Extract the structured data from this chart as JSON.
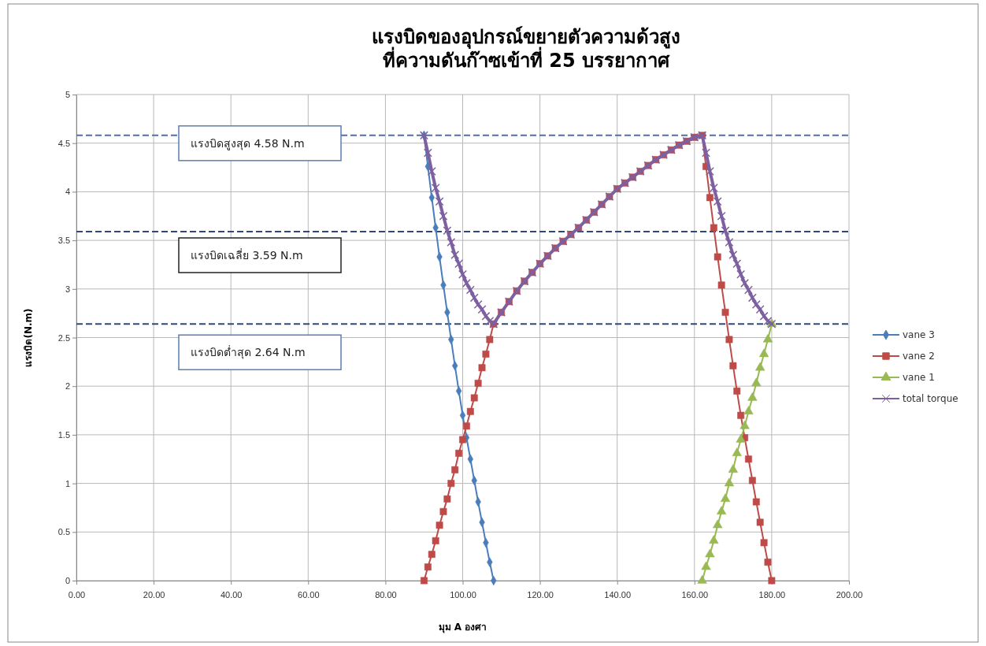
{
  "chart_data": {
    "type": "line",
    "title": "แรงบิดของอุปกรณ์ขยายตัวความด้วสูง\nที่ความดันก๊าซเข้าที่ 25 บรรยากาศ",
    "xlabel": "มุม A องศา",
    "ylabel": "แรงบิด(N.m)",
    "xlim": [
      0,
      200
    ],
    "xticks": [
      {
        "value": 0,
        "label": "0.00"
      },
      {
        "value": 20,
        "label": "20.00"
      },
      {
        "value": 40,
        "label": "40.00"
      },
      {
        "value": 60,
        "label": "60.00"
      },
      {
        "value": 80,
        "label": "80.00"
      },
      {
        "value": 100,
        "label": "100.00"
      },
      {
        "value": 120,
        "label": "120.00"
      },
      {
        "value": 140,
        "label": "140.00"
      },
      {
        "value": 160,
        "label": "160.00"
      },
      {
        "value": 180,
        "label": "180.00"
      },
      {
        "value": 200,
        "label": "200.00"
      }
    ],
    "ylim": [
      0,
      5
    ],
    "yticks": [
      0,
      0.5,
      1,
      1.5,
      2,
      2.5,
      3,
      3.5,
      4,
      4.5,
      5
    ],
    "grid": true,
    "legend": "right",
    "line_style": "solid",
    "ref_lines": [
      {
        "axis": "y",
        "value": 4.58,
        "label": "แรงบิดสูงสุด 4.58 N.m",
        "color": "#4f6fa8",
        "line_style": "dashed"
      },
      {
        "axis": "y",
        "value": 3.59,
        "label": "แรงบิดเฉลี่ย 3.59 N.m",
        "color": "#2f4a7a",
        "line_style": "dashed"
      },
      {
        "axis": "y",
        "value": 2.64,
        "label": "แรงบิดต่ำสุด 2.64 N.m",
        "color": "#2f4a7a",
        "line_style": "dashed"
      }
    ],
    "series": [
      {
        "name": "vane 3",
        "color": "#4a7ebb",
        "marker": "diamond",
        "x": [
          90,
          91,
          92,
          93,
          94,
          95,
          96,
          97,
          98,
          99,
          100,
          101,
          102,
          103,
          104,
          105,
          106,
          107,
          108
        ],
        "values": [
          4.58,
          4.26,
          3.94,
          3.63,
          3.33,
          3.04,
          2.76,
          2.48,
          2.21,
          1.95,
          1.7,
          1.47,
          1.25,
          1.03,
          0.81,
          0.6,
          0.39,
          0.19,
          0
        ]
      },
      {
        "name": "vane 2",
        "color": "#be4b48",
        "marker": "square",
        "x": [
          90,
          91,
          92,
          93,
          94,
          95,
          96,
          97,
          98,
          99,
          100,
          101,
          102,
          103,
          104,
          105,
          106,
          107,
          108,
          110,
          112,
          114,
          116,
          118,
          120,
          122,
          124,
          126,
          128,
          130,
          132,
          134,
          136,
          138,
          140,
          142,
          144,
          146,
          148,
          150,
          152,
          154,
          156,
          158,
          160,
          162,
          163,
          164,
          165,
          166,
          167,
          168,
          169,
          170,
          171,
          172,
          173,
          174,
          175,
          176,
          177,
          178,
          179,
          180
        ],
        "values": [
          0,
          0.14,
          0.27,
          0.41,
          0.57,
          0.71,
          0.84,
          1,
          1.14,
          1.31,
          1.45,
          1.59,
          1.74,
          1.88,
          2.03,
          2.19,
          2.33,
          2.48,
          2.64,
          2.76,
          2.87,
          2.98,
          3.08,
          3.17,
          3.26,
          3.34,
          3.42,
          3.49,
          3.56,
          3.63,
          3.71,
          3.79,
          3.87,
          3.95,
          4.03,
          4.09,
          4.15,
          4.21,
          4.27,
          4.33,
          4.38,
          4.43,
          4.48,
          4.52,
          4.56,
          4.58,
          4.26,
          3.94,
          3.63,
          3.33,
          3.04,
          2.76,
          2.48,
          2.21,
          1.95,
          1.7,
          1.47,
          1.25,
          1.03,
          0.81,
          0.6,
          0.39,
          0.19,
          0
        ]
      },
      {
        "name": "vane 1",
        "color": "#98b954",
        "marker": "triangle",
        "x": [
          162,
          163,
          164,
          165,
          166,
          167,
          168,
          169,
          170,
          171,
          172,
          173,
          174,
          175,
          176,
          177,
          178,
          179,
          180
        ],
        "values": [
          0,
          0.14,
          0.27,
          0.41,
          0.57,
          0.71,
          0.84,
          1,
          1.14,
          1.31,
          1.45,
          1.59,
          1.74,
          1.88,
          2.03,
          2.19,
          2.33,
          2.48,
          2.64
        ]
      },
      {
        "name": "total torque",
        "color": "#7d60a0",
        "marker": "cross",
        "x": [
          90,
          91,
          92,
          93,
          94,
          95,
          96,
          97,
          98,
          99,
          100,
          101,
          102,
          103,
          104,
          105,
          106,
          107,
          108,
          110,
          112,
          114,
          116,
          118,
          120,
          122,
          124,
          126,
          128,
          130,
          132,
          134,
          136,
          138,
          140,
          142,
          144,
          146,
          148,
          150,
          152,
          154,
          156,
          158,
          160,
          162,
          163,
          164,
          165,
          166,
          167,
          168,
          169,
          170,
          171,
          172,
          173,
          174,
          175,
          176,
          177,
          178,
          179,
          180
        ],
        "values": [
          4.58,
          4.4,
          4.21,
          4.04,
          3.9,
          3.75,
          3.6,
          3.48,
          3.35,
          3.26,
          3.15,
          3.06,
          2.99,
          2.91,
          2.84,
          2.79,
          2.72,
          2.67,
          2.64,
          2.76,
          2.87,
          2.98,
          3.08,
          3.17,
          3.26,
          3.34,
          3.42,
          3.49,
          3.56,
          3.63,
          3.71,
          3.79,
          3.87,
          3.95,
          4.03,
          4.09,
          4.15,
          4.21,
          4.27,
          4.33,
          4.38,
          4.43,
          4.48,
          4.52,
          4.56,
          4.58,
          4.4,
          4.21,
          4.04,
          3.9,
          3.75,
          3.6,
          3.48,
          3.35,
          3.26,
          3.15,
          3.06,
          2.99,
          2.91,
          2.84,
          2.79,
          2.72,
          2.67,
          2.64
        ]
      }
    ]
  }
}
